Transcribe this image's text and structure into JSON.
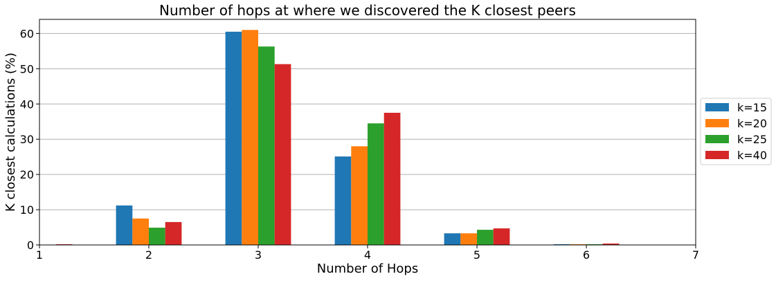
{
  "chart_data": {
    "type": "bar",
    "title": "Number of hops at where we discovered the K closest peers",
    "xlabel": "Number of Hops",
    "ylabel": "K closest calculations (%)",
    "xlim": [
      1,
      7
    ],
    "ylim": [
      0,
      64
    ],
    "x_ticks": [
      1,
      2,
      3,
      4,
      5,
      6,
      7
    ],
    "y_ticks": [
      0,
      10,
      20,
      30,
      40,
      50,
      60
    ],
    "x": [
      1,
      2,
      3,
      4,
      5,
      6
    ],
    "grid": "y-axis horizontal lines",
    "legend_position": "right (outside plot, centered vertically)",
    "series": [
      {
        "name": "k=15",
        "color": "#1f77b4",
        "values": [
          0.0,
          11.2,
          60.5,
          25.1,
          3.3,
          0.2
        ]
      },
      {
        "name": "k=20",
        "color": "#ff7f0e",
        "values": [
          0.0,
          7.5,
          61.0,
          28.0,
          3.3,
          0.2
        ]
      },
      {
        "name": "k=25",
        "color": "#2ca02c",
        "values": [
          0.0,
          4.9,
          56.3,
          34.5,
          4.3,
          0.2
        ]
      },
      {
        "name": "k=40",
        "color": "#d62728",
        "values": [
          0.2,
          6.5,
          51.3,
          37.5,
          4.7,
          0.4
        ]
      }
    ]
  }
}
